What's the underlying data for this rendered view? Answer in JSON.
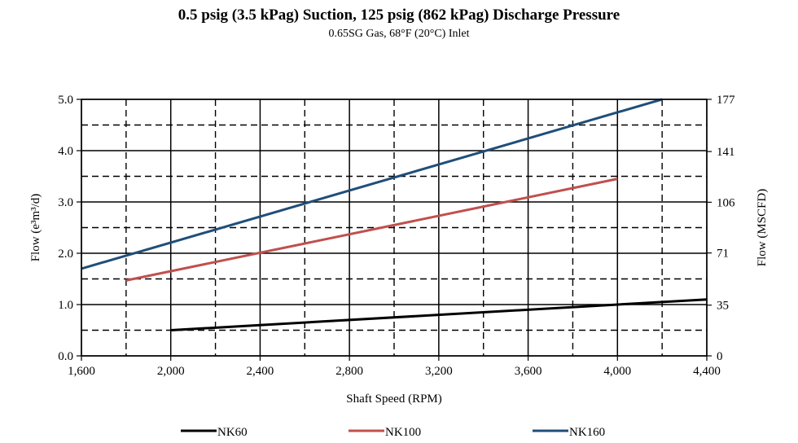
{
  "chart_data": {
    "type": "line",
    "title": "0.5 psig (3.5 kPag) Suction, 125 psig (862 kPag) Discharge Pressure",
    "subtitle": "0.65SG Gas, 68°F (20°C) Inlet",
    "xlabel": "Shaft Speed (RPM)",
    "ylabel": "Flow (e³m³/d)",
    "y2label": "Flow (MSCFD)",
    "xlim": [
      1600,
      4400
    ],
    "ylim": [
      0,
      5
    ],
    "x_ticks": [
      1600,
      2000,
      2400,
      2800,
      3200,
      3600,
      4000,
      4400
    ],
    "x_tick_labels": [
      "1,600",
      "2,000",
      "2,400",
      "2,800",
      "3,200",
      "3,600",
      "4,000",
      "4,400"
    ],
    "y_ticks": [
      0,
      1,
      2,
      3,
      4,
      5
    ],
    "y_tick_labels": [
      "0.0",
      "1.0",
      "2.0",
      "3.0",
      "4.0",
      "5.0"
    ],
    "y2_ticks": [
      0,
      35,
      71,
      106,
      141,
      177
    ],
    "y2_tick_labels": [
      "0",
      "35",
      "71",
      "106",
      "141",
      "177"
    ],
    "grid": true,
    "legend_position": "bottom",
    "colors": {
      "NK60": "#000000",
      "NK100": "#c0504d",
      "NK160": "#1f4e79"
    },
    "series": [
      {
        "name": "NK60",
        "x": [
          2000,
          4400
        ],
        "values": [
          0.5,
          1.1
        ]
      },
      {
        "name": "NK100",
        "x": [
          1800,
          4000
        ],
        "values": [
          1.47,
          3.45
        ]
      },
      {
        "name": "NK160",
        "x": [
          1600,
          4200
        ],
        "values": [
          1.7,
          5.0
        ]
      }
    ]
  }
}
